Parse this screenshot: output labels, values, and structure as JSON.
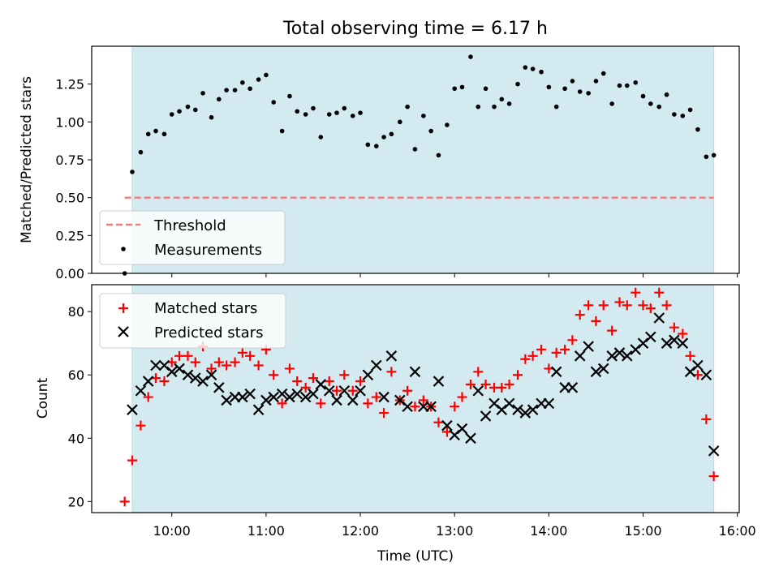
{
  "chart_data": {
    "type": "scatter",
    "title": "Total observing time = 6.17 h",
    "xlabel": "Time (UTC)",
    "x_ticks": [
      "10:00",
      "11:00",
      "12:00",
      "13:00",
      "14:00",
      "15:00",
      "16:00"
    ],
    "xlim_hours": [
      9.15,
      16.02
    ],
    "observing_window_hours": [
      9.58,
      15.75
    ],
    "window_color": "#d3eaf0",
    "panels": [
      {
        "ylabel": "Matched/Predicted stars",
        "ylim": [
          0,
          1.5
        ],
        "yticks": [
          "0.00",
          "0.25",
          "0.50",
          "0.75",
          "1.00",
          "1.25"
        ],
        "legend": {
          "position": "lower-left",
          "entries": [
            "Threshold",
            "Measurements"
          ]
        },
        "threshold": {
          "name": "Threshold",
          "value": 0.5,
          "x_range": [
            9.5,
            15.75
          ],
          "color": "#f08080",
          "style": "dashed"
        },
        "measurements": {
          "name": "Measurements",
          "color": "#000000",
          "x": [
            9.5,
            9.58,
            9.67,
            9.75,
            9.83,
            9.92,
            10.0,
            10.08,
            10.17,
            10.25,
            10.33,
            10.42,
            10.5,
            10.58,
            10.67,
            10.75,
            10.83,
            10.92,
            11.0,
            11.08,
            11.17,
            11.25,
            11.33,
            11.42,
            11.5,
            11.58,
            11.67,
            11.75,
            11.83,
            11.92,
            12.0,
            12.08,
            12.17,
            12.25,
            12.33,
            12.42,
            12.5,
            12.58,
            12.67,
            12.75,
            12.83,
            12.92,
            13.0,
            13.08,
            13.17,
            13.25,
            13.33,
            13.42,
            13.5,
            13.58,
            13.67,
            13.75,
            13.83,
            13.92,
            14.0,
            14.08,
            14.17,
            14.25,
            14.33,
            14.42,
            14.5,
            14.58,
            14.67,
            14.75,
            14.83,
            14.92,
            15.0,
            15.08,
            15.17,
            15.25,
            15.33,
            15.42,
            15.5,
            15.58,
            15.67,
            15.75
          ],
          "y": [
            0.0,
            0.67,
            0.8,
            0.92,
            0.94,
            0.92,
            1.05,
            1.07,
            1.1,
            1.08,
            1.19,
            1.03,
            1.15,
            1.21,
            1.21,
            1.26,
            1.22,
            1.28,
            1.31,
            1.13,
            0.94,
            1.17,
            1.07,
            1.05,
            1.09,
            0.9,
            1.05,
            1.06,
            1.09,
            1.04,
            1.06,
            0.85,
            0.84,
            0.9,
            0.92,
            1.0,
            1.1,
            0.82,
            1.04,
            0.94,
            0.78,
            0.98,
            1.22,
            1.23,
            1.43,
            1.1,
            1.22,
            1.1,
            1.15,
            1.12,
            1.25,
            1.36,
            1.35,
            1.33,
            1.23,
            1.1,
            1.22,
            1.27,
            1.2,
            1.19,
            1.27,
            1.32,
            1.12,
            1.24,
            1.24,
            1.26,
            1.17,
            1.12,
            1.1,
            1.18,
            1.05,
            1.04,
            1.08,
            0.95,
            0.77,
            0.78
          ]
        }
      },
      {
        "ylabel": "Count",
        "ylim": [
          16.5,
          88.5
        ],
        "yticks": [
          "20",
          "40",
          "60",
          "80"
        ],
        "legend": {
          "position": "upper-left",
          "entries": [
            "Matched stars",
            "Predicted stars"
          ]
        },
        "series": [
          {
            "name": "Matched stars",
            "marker": "+",
            "color": "#ff0000",
            "x": [
              9.5,
              9.58,
              9.67,
              9.75,
              9.83,
              9.92,
              10.0,
              10.08,
              10.17,
              10.25,
              10.33,
              10.42,
              10.5,
              10.58,
              10.67,
              10.75,
              10.83,
              10.92,
              11.0,
              11.08,
              11.17,
              11.25,
              11.33,
              11.42,
              11.5,
              11.58,
              11.67,
              11.75,
              11.83,
              11.92,
              12.0,
              12.08,
              12.17,
              12.25,
              12.33,
              12.42,
              12.5,
              12.58,
              12.67,
              12.75,
              12.83,
              12.92,
              13.0,
              13.08,
              13.17,
              13.25,
              13.33,
              13.42,
              13.5,
              13.58,
              13.67,
              13.75,
              13.83,
              13.92,
              14.0,
              14.08,
              14.17,
              14.25,
              14.33,
              14.42,
              14.5,
              14.58,
              14.67,
              14.75,
              14.83,
              14.92,
              15.0,
              15.08,
              15.17,
              15.25,
              15.33,
              15.42,
              15.5,
              15.58,
              15.67,
              15.75
            ],
            "y": [
              20,
              33,
              44,
              53,
              59,
              58,
              64,
              66,
              66,
              64,
              69,
              62,
              64,
              63,
              64,
              67,
              66,
              63,
              68,
              60,
              51,
              62,
              58,
              56,
              59,
              51,
              58,
              55,
              60,
              55,
              58,
              51,
              53,
              48,
              61,
              52,
              55,
              50,
              52,
              50,
              45,
              42,
              50,
              53,
              57,
              61,
              57,
              56,
              56,
              57,
              60,
              65,
              66,
              68,
              62,
              67,
              68,
              71,
              79,
              82,
              77,
              82,
              74,
              83,
              82,
              86,
              82,
              81,
              86,
              82,
              75,
              73,
              66,
              60,
              46,
              28
            ]
          },
          {
            "name": "Predicted stars",
            "marker": "x",
            "color": "#000000",
            "x": [
              9.58,
              9.67,
              9.75,
              9.83,
              9.92,
              10.0,
              10.08,
              10.17,
              10.25,
              10.33,
              10.42,
              10.5,
              10.58,
              10.67,
              10.75,
              10.83,
              10.92,
              11.0,
              11.08,
              11.17,
              11.25,
              11.33,
              11.42,
              11.5,
              11.58,
              11.67,
              11.75,
              11.83,
              11.92,
              12.0,
              12.08,
              12.17,
              12.25,
              12.33,
              12.42,
              12.5,
              12.58,
              12.67,
              12.75,
              12.83,
              12.92,
              13.0,
              13.08,
              13.17,
              13.25,
              13.33,
              13.42,
              13.5,
              13.58,
              13.67,
              13.75,
              13.83,
              13.92,
              14.0,
              14.08,
              14.17,
              14.25,
              14.33,
              14.42,
              14.5,
              14.58,
              14.67,
              14.75,
              14.83,
              14.92,
              15.0,
              15.08,
              15.17,
              15.25,
              15.33,
              15.42,
              15.5,
              15.58,
              15.67,
              15.75
            ],
            "y": [
              49,
              55,
              58,
              63,
              63,
              61,
              62,
              60,
              59,
              58,
              60,
              56,
              52,
              53,
              53,
              54,
              49,
              52,
              53,
              54,
              53,
              54,
              53,
              54,
              57,
              55,
              52,
              55,
              52,
              55,
              60,
              63,
              53,
              66,
              52,
              50,
              61,
              50,
              50,
              58,
              44,
              41,
              43,
              40,
              55,
              47,
              51,
              49,
              51,
              49,
              48,
              49,
              51,
              51,
              61,
              56,
              56,
              66,
              69,
              61,
              62,
              66,
              67,
              66,
              68,
              70,
              72,
              78,
              70,
              71,
              70,
              61,
              63,
              60,
              36
            ]
          }
        ]
      }
    ]
  }
}
